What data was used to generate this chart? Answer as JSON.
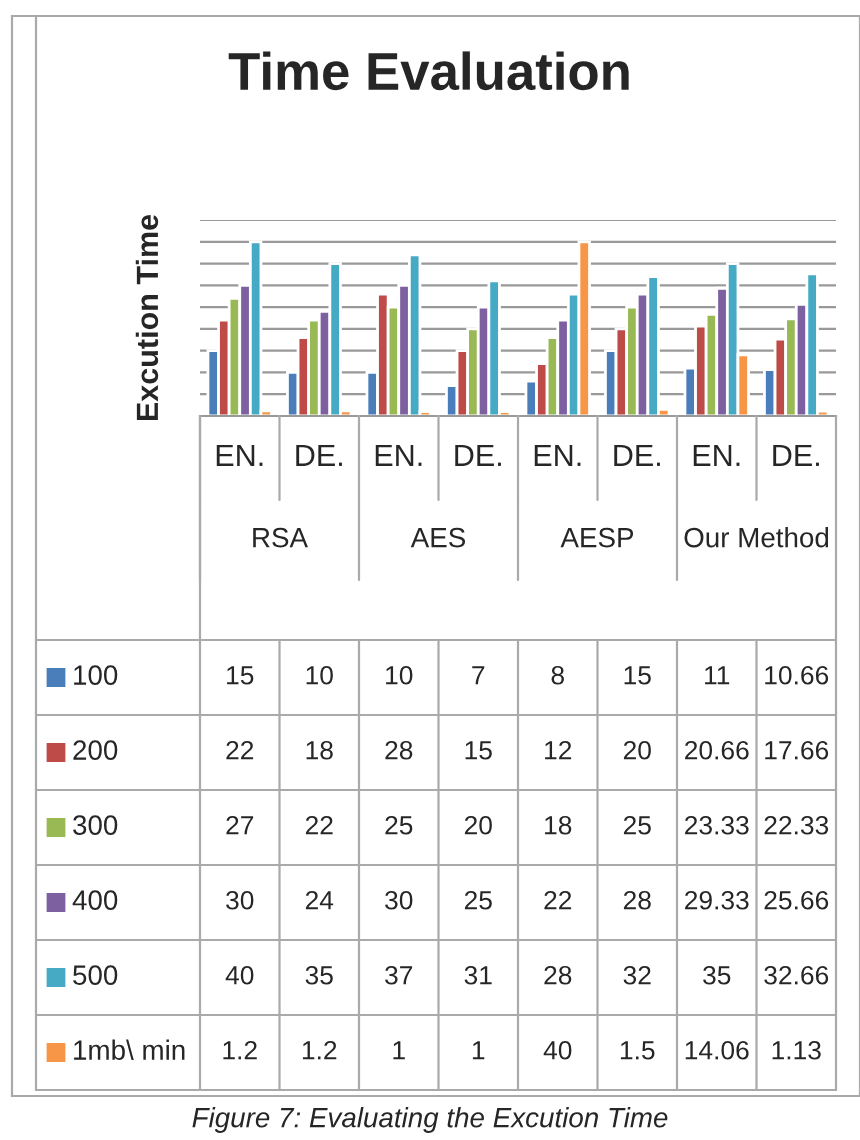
{
  "chart_data": {
    "type": "bar",
    "title": "Time Evaluation",
    "ylabel": "Excution Time",
    "categories": [
      "EN.",
      "DE.",
      "EN.",
      "DE.",
      "EN.",
      "DE.",
      "EN.",
      "DE."
    ],
    "series": [
      {
        "name": "100",
        "color": "#4a7ebb",
        "values": [
          15,
          10,
          10,
          7,
          8,
          15,
          11,
          10.66
        ]
      },
      {
        "name": "200",
        "color": "#be4b48",
        "values": [
          22,
          18,
          28,
          15,
          12,
          20,
          20.66,
          17.66
        ]
      },
      {
        "name": "300",
        "color": "#98b954",
        "values": [
          27,
          22,
          25,
          20,
          18,
          25,
          23.33,
          22.33
        ]
      },
      {
        "name": "400",
        "color": "#7d60a0",
        "values": [
          30,
          24,
          30,
          25,
          22,
          28,
          29.33,
          25.66
        ]
      },
      {
        "name": "500",
        "color": "#46aac5",
        "values": [
          40,
          35,
          37,
          31,
          28,
          32,
          35,
          32.66
        ]
      },
      {
        "name": "1mb\\ min",
        "color": "#f79646",
        "values": [
          1.2,
          1.2,
          1,
          1,
          40,
          1.5,
          14.06,
          1.13
        ]
      }
    ],
    "ylim": [
      0,
      45
    ],
    "yticks": [
      {
        "value": 0,
        "label": null
      },
      {
        "value": 5,
        "label": null
      },
      {
        "value": 10,
        "label": null
      },
      {
        "value": 15,
        "label": null
      },
      {
        "value": 20,
        "label": null
      },
      {
        "value": 25,
        "label": null
      },
      {
        "value": 30,
        "label": null
      },
      {
        "value": 35,
        "label": null
      },
      {
        "value": 40,
        "label": null
      },
      {
        "value": 45,
        "label": null
      }
    ],
    "grid": "y",
    "tick_labels": "x",
    "data_labels": true,
    "legend": "bottom",
    "annotations": [
      "RSA",
      "AES",
      "AESP",
      "Our Method",
      "Figure 7: Evaluating the Excution Time"
    ]
  }
}
